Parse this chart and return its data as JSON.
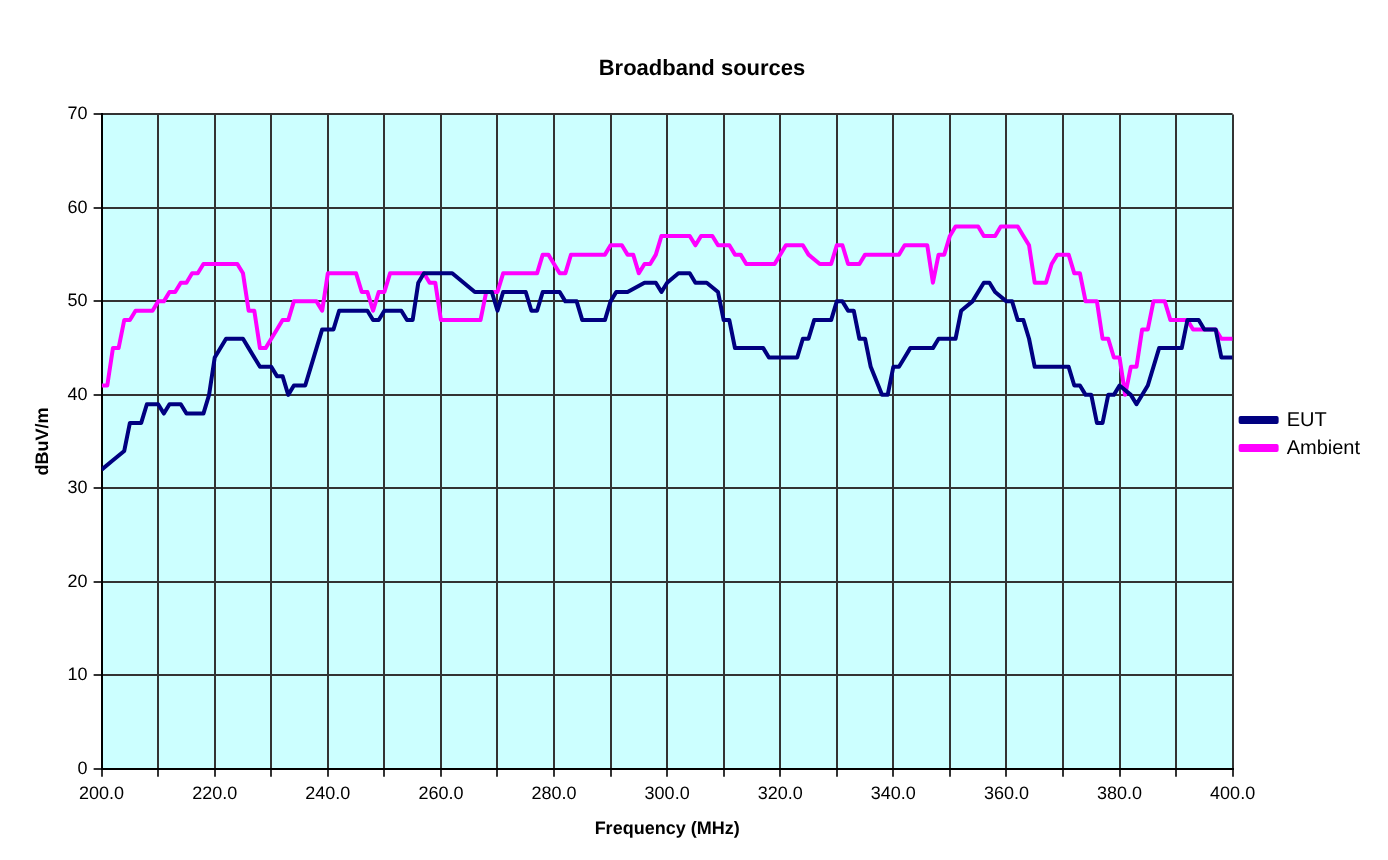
{
  "chart_data": {
    "type": "line",
    "title": "Broadband sources",
    "xlabel": "Frequency (MHz)",
    "ylabel": "dBuV/m",
    "xlim": [
      200,
      400
    ],
    "xticks": [
      {
        "value": 200,
        "label": "200.0"
      },
      {
        "value": 210,
        "label": null
      },
      {
        "value": 220,
        "label": "220.0"
      },
      {
        "value": 230,
        "label": null
      },
      {
        "value": 240,
        "label": "240.0"
      },
      {
        "value": 250,
        "label": null
      },
      {
        "value": 260,
        "label": "260.0"
      },
      {
        "value": 270,
        "label": null
      },
      {
        "value": 280,
        "label": "280.0"
      },
      {
        "value": 290,
        "label": null
      },
      {
        "value": 300,
        "label": "300.0"
      },
      {
        "value": 310,
        "label": null
      },
      {
        "value": 320,
        "label": "320.0"
      },
      {
        "value": 330,
        "label": null
      },
      {
        "value": 340,
        "label": "340.0"
      },
      {
        "value": 350,
        "label": null
      },
      {
        "value": 360,
        "label": "360.0"
      },
      {
        "value": 370,
        "label": null
      },
      {
        "value": 380,
        "label": "380.0"
      },
      {
        "value": 390,
        "label": null
      },
      {
        "value": 400,
        "label": "400.0"
      }
    ],
    "ylim": [
      0,
      70
    ],
    "yticks": [
      0,
      10,
      20,
      30,
      40,
      50,
      60,
      70
    ],
    "grid": true,
    "legend": "right",
    "marker": "none",
    "line_style": "solid",
    "series": [
      {
        "name": "EUT",
        "color": "#000080",
        "x": [
          200,
          202,
          204,
          205,
          207,
          208,
          210,
          211,
          212,
          214,
          215,
          218,
          219,
          220,
          222,
          225,
          226,
          227,
          228,
          230,
          231,
          232,
          233,
          234,
          236,
          237,
          238,
          239,
          241,
          242,
          244,
          247,
          248,
          249,
          250,
          253,
          254,
          255,
          256,
          257,
          262,
          266,
          269,
          270,
          271,
          275,
          276,
          277,
          278,
          281,
          282,
          284,
          285,
          289,
          290,
          291,
          293,
          296,
          298,
          299,
          300,
          302,
          304,
          305,
          307,
          309,
          310,
          311,
          312,
          317,
          318,
          323,
          324,
          325,
          326,
          329,
          330,
          331,
          332,
          333,
          334,
          335,
          336,
          338,
          339,
          340,
          341,
          342,
          343,
          347,
          348,
          351,
          352,
          354,
          356,
          357,
          358,
          360,
          361,
          362,
          363,
          364,
          365,
          371,
          372,
          373,
          374,
          375,
          376,
          377,
          378,
          379,
          380,
          382,
          383,
          385,
          387,
          391,
          392,
          394,
          395,
          397,
          398,
          400
        ],
        "values": [
          32,
          33,
          34,
          37,
          37,
          39,
          39,
          38,
          39,
          39,
          38,
          38,
          40,
          44,
          46,
          46,
          45,
          44,
          43,
          43,
          42,
          42,
          40,
          41,
          41,
          43,
          45,
          47,
          47,
          49,
          49,
          49,
          48,
          48,
          49,
          49,
          48,
          48,
          52,
          53,
          53,
          51,
          51,
          49,
          51,
          51,
          49,
          49,
          51,
          51,
          50,
          50,
          48,
          48,
          50,
          51,
          51,
          52,
          52,
          51,
          52,
          53,
          53,
          52,
          52,
          51,
          48,
          48,
          45,
          45,
          44,
          44,
          46,
          46,
          48,
          48,
          50,
          50,
          49,
          49,
          46,
          46,
          43,
          40,
          40,
          43,
          43,
          44,
          45,
          45,
          46,
          46,
          49,
          50,
          52,
          52,
          51,
          50,
          50,
          48,
          48,
          46,
          43,
          43,
          41,
          41,
          40,
          40,
          37,
          37,
          40,
          40,
          41,
          40,
          39,
          41,
          45,
          45,
          48,
          48,
          47,
          47,
          44,
          44
        ]
      },
      {
        "name": "Ambient",
        "color": "#ff00ff",
        "x": [
          200,
          201,
          202,
          203,
          204,
          205,
          206,
          209,
          210,
          211,
          212,
          213,
          214,
          215,
          216,
          217,
          218,
          224,
          225,
          226,
          227,
          228,
          229,
          230,
          231,
          232,
          233,
          234,
          238,
          239,
          240,
          245,
          246,
          247,
          248,
          249,
          250,
          251,
          257,
          258,
          259,
          260,
          263,
          267,
          268,
          270,
          271,
          277,
          278,
          279,
          280,
          281,
          282,
          283,
          289,
          290,
          292,
          293,
          294,
          295,
          296,
          297,
          298,
          299,
          304,
          305,
          306,
          308,
          309,
          311,
          312,
          313,
          314,
          319,
          320,
          321,
          324,
          325,
          327,
          329,
          330,
          331,
          332,
          334,
          335,
          341,
          342,
          346,
          347,
          348,
          349,
          350,
          351,
          355,
          356,
          358,
          359,
          362,
          363,
          364,
          365,
          367,
          368,
          369,
          371,
          372,
          373,
          374,
          376,
          377,
          378,
          379,
          380,
          381,
          382,
          383,
          384,
          385,
          386,
          388,
          389,
          392,
          393,
          397,
          398,
          400
        ],
        "values": [
          41,
          41,
          45,
          45,
          48,
          48,
          49,
          49,
          50,
          50,
          51,
          51,
          52,
          52,
          53,
          53,
          54,
          54,
          53,
          49,
          49,
          45,
          45,
          46,
          47,
          48,
          48,
          50,
          50,
          49,
          53,
          53,
          51,
          51,
          49,
          51,
          51,
          53,
          53,
          52,
          52,
          48,
          48,
          48,
          51,
          51,
          53,
          53,
          55,
          55,
          54,
          53,
          53,
          55,
          55,
          56,
          56,
          55,
          55,
          53,
          54,
          54,
          55,
          57,
          57,
          56,
          57,
          57,
          56,
          56,
          55,
          55,
          54,
          54,
          55,
          56,
          56,
          55,
          54,
          54,
          56,
          56,
          54,
          54,
          55,
          55,
          56,
          56,
          52,
          55,
          55,
          57,
          58,
          58,
          57,
          57,
          58,
          58,
          57,
          56,
          52,
          52,
          54,
          55,
          55,
          53,
          53,
          50,
          50,
          46,
          46,
          44,
          44,
          40,
          43,
          43,
          47,
          47,
          50,
          50,
          48,
          48,
          47,
          47,
          46,
          46
        ]
      }
    ]
  }
}
